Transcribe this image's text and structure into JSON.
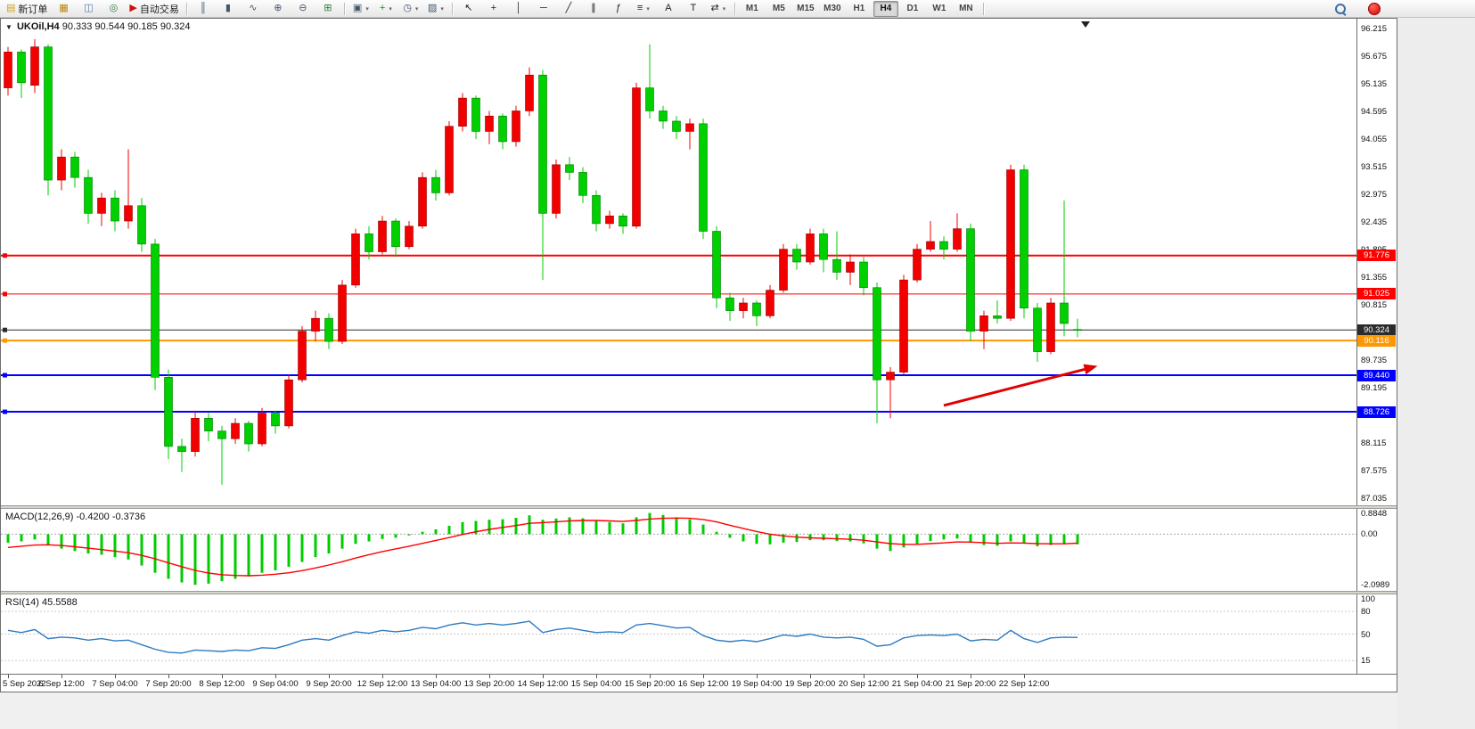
{
  "toolbar": {
    "groups": [
      {
        "name": "orders",
        "items": [
          {
            "name": "new-order-button",
            "glyph": "▤",
            "color": "#d4a017",
            "label": "新订单"
          },
          {
            "name": "market-watch-button",
            "glyph": "▦",
            "color": "#b8860b"
          },
          {
            "name": "chart-windows-button",
            "glyph": "◫",
            "color": "#5577aa"
          },
          {
            "name": "community-button",
            "glyph": "◎",
            "color": "#2e7d32"
          },
          {
            "name": "autotrading-button",
            "glyph": "▶",
            "color": "#cc1111",
            "label": "自动交易"
          }
        ]
      },
      {
        "name": "chart-type",
        "items": [
          {
            "name": "bar-chart-button",
            "glyph": "║",
            "color": "#44566b"
          },
          {
            "name": "candlestick-chart-button",
            "glyph": "▮",
            "color": "#44566b"
          },
          {
            "name": "line-chart-button",
            "glyph": "∿",
            "color": "#44566b"
          },
          {
            "name": "zoom-in-button",
            "glyph": "⊕",
            "color": "#44566b"
          },
          {
            "name": "zoom-out-button",
            "glyph": "⊖",
            "color": "#44566b"
          },
          {
            "name": "tile-windows-button",
            "glyph": "⊞",
            "color": "#2e7d32"
          }
        ]
      },
      {
        "name": "templates",
        "items": [
          {
            "name": "new-chart-button",
            "glyph": "▣",
            "color": "#44566b",
            "dropdown": true
          },
          {
            "name": "indicators-button",
            "glyph": "+",
            "color": "#1f8a1f",
            "dropdown": true
          },
          {
            "name": "periods-button",
            "glyph": "◷",
            "color": "#44566b",
            "dropdown": true
          },
          {
            "name": "template-button",
            "glyph": "▨",
            "color": "#44566b",
            "dropdown": true
          }
        ]
      },
      {
        "name": "draw",
        "items": [
          {
            "name": "cursor-button",
            "glyph": "↖",
            "color": "#222"
          },
          {
            "name": "crosshair-button",
            "glyph": "+",
            "color": "#222"
          },
          {
            "name": "vertical-line-button",
            "glyph": "│",
            "color": "#222"
          },
          {
            "name": "horizontal-line-button",
            "glyph": "─",
            "color": "#222"
          },
          {
            "name": "trendline-button",
            "glyph": "╱",
            "color": "#222"
          },
          {
            "name": "channel-button",
            "glyph": "∥",
            "color": "#222"
          },
          {
            "name": "fibonacci-button",
            "glyph": "ƒ",
            "color": "#222"
          },
          {
            "name": "shapes-button",
            "glyph": "≡",
            "color": "#222",
            "dropdown": true
          },
          {
            "name": "text-button",
            "glyph": "A",
            "color": "#222"
          },
          {
            "name": "text-label-button",
            "glyph": "T",
            "color": "#222"
          },
          {
            "name": "arrows-button",
            "glyph": "⇄",
            "color": "#222",
            "dropdown": true
          }
        ]
      }
    ],
    "timeframes": [
      "M1",
      "M5",
      "M15",
      "M30",
      "H1",
      "H4",
      "D1",
      "W1",
      "MN"
    ],
    "active_timeframe": "H4"
  },
  "chart": {
    "symbol_label": "UKOil,H4",
    "ohlc_label": "90.333 90.544 90.185 90.324",
    "expand_icon": "▼",
    "colors": {
      "up": "#f20000",
      "up_border": "#990000",
      "down": "#00cf00",
      "down_border": "#007a00",
      "background": "#ffffff"
    },
    "price_ticks": [
      "96.215",
      "95.675",
      "95.135",
      "94.595",
      "94.055",
      "93.515",
      "92.975",
      "92.435",
      "91.895",
      "91.355",
      "90.815",
      "90.275",
      "89.735",
      "89.195",
      "88.655",
      "88.115",
      "87.575",
      "87.035"
    ],
    "hlines": [
      {
        "label": "91.776",
        "color": "#ff0000",
        "width": 2,
        "role": "resistance-line"
      },
      {
        "label": "91.025",
        "color": "#ff0000",
        "width": 1,
        "role": "resistance-line"
      },
      {
        "label": "90.324",
        "color": "#2b2b2b",
        "width": 1,
        "role": "bid-price-line"
      },
      {
        "label": "90.116",
        "color": "#ff9800",
        "width": 2,
        "role": "order-line"
      },
      {
        "label": "89.440",
        "color": "#0000ff",
        "width": 2,
        "role": "support-line"
      },
      {
        "label": "88.726",
        "color": "#0000ff",
        "width": 2,
        "role": "support-line"
      }
    ],
    "arrow": {
      "from_bar": 70,
      "to_bar": 81.5,
      "price_from": 88.85,
      "price_to": 89.62,
      "color": "#e00000"
    }
  },
  "chart_data": {
    "type": "candlestick",
    "title": "UKOil,H4",
    "symbol": "UKOil",
    "period": "H4",
    "current_bar": {
      "open": 90.333,
      "high": 90.544,
      "low": 90.185,
      "close": 90.324
    },
    "price_range": [
      87.035,
      96.215
    ],
    "candles": [
      [
        95.05,
        95.85,
        94.9,
        95.75
      ],
      [
        95.75,
        95.8,
        94.85,
        95.15
      ],
      [
        95.1,
        96.0,
        94.95,
        95.85
      ],
      [
        95.85,
        95.9,
        92.95,
        93.25
      ],
      [
        93.25,
        93.85,
        93.05,
        93.7
      ],
      [
        93.7,
        93.8,
        93.1,
        93.3
      ],
      [
        93.3,
        93.45,
        92.4,
        92.6
      ],
      [
        92.6,
        93.0,
        92.35,
        92.9
      ],
      [
        92.9,
        93.05,
        92.25,
        92.45
      ],
      [
        92.45,
        93.85,
        92.3,
        92.75
      ],
      [
        92.75,
        92.9,
        91.85,
        92.0
      ],
      [
        92.0,
        92.1,
        89.15,
        89.4
      ],
      [
        89.4,
        89.55,
        87.8,
        88.05
      ],
      [
        88.05,
        88.2,
        87.55,
        87.95
      ],
      [
        87.95,
        88.75,
        87.85,
        88.6
      ],
      [
        88.6,
        88.7,
        88.15,
        88.35
      ],
      [
        88.35,
        88.45,
        87.3,
        88.2
      ],
      [
        88.2,
        88.6,
        88.1,
        88.5
      ],
      [
        88.5,
        88.55,
        87.95,
        88.1
      ],
      [
        88.1,
        88.8,
        88.05,
        88.7
      ],
      [
        88.7,
        88.75,
        88.3,
        88.45
      ],
      [
        88.45,
        89.45,
        88.4,
        89.35
      ],
      [
        89.35,
        90.4,
        89.3,
        90.3
      ],
      [
        90.3,
        90.7,
        90.1,
        90.55
      ],
      [
        90.55,
        90.65,
        89.95,
        90.1
      ],
      [
        90.1,
        91.3,
        90.05,
        91.2
      ],
      [
        91.2,
        92.3,
        91.15,
        92.2
      ],
      [
        92.2,
        92.35,
        91.7,
        91.85
      ],
      [
        91.85,
        92.55,
        91.8,
        92.45
      ],
      [
        92.45,
        92.5,
        91.75,
        91.95
      ],
      [
        91.95,
        92.45,
        91.9,
        92.35
      ],
      [
        92.35,
        93.4,
        92.3,
        93.3
      ],
      [
        93.3,
        93.45,
        92.85,
        93.0
      ],
      [
        93.0,
        94.4,
        92.95,
        94.3
      ],
      [
        94.3,
        94.95,
        94.2,
        94.85
      ],
      [
        94.85,
        94.9,
        94.05,
        94.2
      ],
      [
        94.2,
        94.6,
        93.95,
        94.5
      ],
      [
        94.5,
        94.55,
        93.85,
        94.0
      ],
      [
        94.0,
        94.7,
        93.9,
        94.6
      ],
      [
        94.6,
        95.45,
        94.5,
        95.3
      ],
      [
        95.3,
        95.4,
        91.3,
        92.6
      ],
      [
        92.6,
        93.65,
        92.5,
        93.55
      ],
      [
        93.55,
        93.7,
        93.25,
        93.4
      ],
      [
        93.4,
        93.5,
        92.8,
        92.95
      ],
      [
        92.95,
        93.05,
        92.25,
        92.4
      ],
      [
        92.4,
        92.65,
        92.3,
        92.55
      ],
      [
        92.55,
        92.6,
        92.2,
        92.35
      ],
      [
        92.35,
        95.15,
        92.3,
        95.05
      ],
      [
        95.05,
        95.9,
        94.45,
        94.6
      ],
      [
        94.6,
        94.7,
        94.25,
        94.4
      ],
      [
        94.4,
        94.5,
        94.05,
        94.2
      ],
      [
        94.2,
        94.45,
        93.85,
        94.35
      ],
      [
        94.35,
        94.45,
        92.1,
        92.25
      ],
      [
        92.25,
        92.35,
        90.75,
        90.95
      ],
      [
        90.95,
        91.05,
        90.5,
        90.7
      ],
      [
        90.7,
        90.95,
        90.55,
        90.85
      ],
      [
        90.85,
        90.9,
        90.4,
        90.6
      ],
      [
        90.6,
        91.2,
        90.55,
        91.1
      ],
      [
        91.1,
        92.0,
        91.05,
        91.9
      ],
      [
        91.9,
        92.0,
        91.5,
        91.65
      ],
      [
        91.65,
        92.3,
        91.6,
        92.2
      ],
      [
        92.2,
        92.3,
        91.45,
        91.7
      ],
      [
        91.7,
        92.25,
        91.3,
        91.45
      ],
      [
        91.45,
        91.8,
        91.2,
        91.65
      ],
      [
        91.65,
        91.75,
        91.0,
        91.15
      ],
      [
        91.15,
        91.25,
        88.5,
        89.35
      ],
      [
        89.35,
        89.6,
        88.6,
        89.5
      ],
      [
        89.5,
        91.4,
        89.45,
        91.3
      ],
      [
        91.3,
        92.0,
        91.25,
        91.9
      ],
      [
        91.9,
        92.45,
        91.85,
        92.05
      ],
      [
        92.05,
        92.15,
        91.7,
        91.9
      ],
      [
        91.9,
        92.6,
        91.85,
        92.3
      ],
      [
        92.3,
        92.4,
        90.1,
        90.3
      ],
      [
        90.3,
        90.7,
        89.95,
        90.6
      ],
      [
        90.6,
        90.9,
        90.45,
        90.55
      ],
      [
        90.55,
        93.55,
        90.5,
        93.45
      ],
      [
        93.45,
        93.55,
        90.55,
        90.75
      ],
      [
        90.75,
        90.85,
        89.7,
        89.9
      ],
      [
        89.9,
        90.95,
        89.85,
        90.85
      ],
      [
        90.85,
        92.85,
        90.2,
        90.45
      ],
      [
        90.333,
        90.544,
        90.185,
        90.324
      ]
    ],
    "x_labels": [
      "5 Sep 2022",
      "6 Sep 12:00",
      "7 Sep 04:00",
      "7 Sep 20:00",
      "8 Sep 12:00",
      "9 Sep 04:00",
      "9 Sep 20:00",
      "12 Sep 12:00",
      "13 Sep 04:00",
      "13 Sep 20:00",
      "14 Sep 12:00",
      "15 Sep 04:00",
      "15 Sep 20:00",
      "16 Sep 12:00",
      "19 Sep 04:00",
      "19 Sep 20:00",
      "20 Sep 12:00",
      "21 Sep 04:00",
      "21 Sep 20:00",
      "22 Sep 12:00"
    ],
    "x_label_every": 4,
    "macd": {
      "title": "MACD(12,26,9)",
      "values_text": "-0.4200 -0.3736",
      "main_value": -0.42,
      "signal_value": -0.3736,
      "histogram_color": "#00cc00",
      "signal_color": "#ff0000",
      "y_ticks": [
        {
          "label": "0.8848",
          "value": 0.8848
        },
        {
          "label": "0.00",
          "value": 0
        },
        {
          "label": "-2.0989",
          "value": -2.0989
        }
      ],
      "histogram": [
        -0.35,
        -0.3,
        -0.22,
        -0.45,
        -0.6,
        -0.7,
        -0.8,
        -0.85,
        -0.95,
        -1.05,
        -1.3,
        -1.6,
        -1.85,
        -2.0,
        -2.1,
        -2.05,
        -1.95,
        -1.85,
        -1.75,
        -1.6,
        -1.5,
        -1.35,
        -1.15,
        -0.95,
        -0.8,
        -0.6,
        -0.4,
        -0.3,
        -0.2,
        -0.15,
        -0.05,
        0.1,
        0.2,
        0.35,
        0.5,
        0.55,
        0.6,
        0.62,
        0.68,
        0.78,
        0.6,
        0.65,
        0.7,
        0.66,
        0.55,
        0.5,
        0.45,
        0.7,
        0.88,
        0.8,
        0.7,
        0.62,
        0.4,
        0.1,
        -0.15,
        -0.3,
        -0.4,
        -0.42,
        -0.35,
        -0.32,
        -0.25,
        -0.25,
        -0.28,
        -0.3,
        -0.38,
        -0.6,
        -0.7,
        -0.55,
        -0.4,
        -0.28,
        -0.22,
        -0.18,
        -0.35,
        -0.45,
        -0.48,
        -0.3,
        -0.38,
        -0.5,
        -0.45,
        -0.42,
        -0.42
      ],
      "signal": [
        -0.55,
        -0.5,
        -0.45,
        -0.44,
        -0.47,
        -0.52,
        -0.58,
        -0.64,
        -0.7,
        -0.77,
        -0.88,
        -1.02,
        -1.19,
        -1.35,
        -1.5,
        -1.61,
        -1.68,
        -1.71,
        -1.72,
        -1.7,
        -1.66,
        -1.6,
        -1.51,
        -1.4,
        -1.28,
        -1.14,
        -0.99,
        -0.85,
        -0.72,
        -0.61,
        -0.5,
        -0.38,
        -0.26,
        -0.14,
        -0.01,
        0.1,
        0.2,
        0.28,
        0.36,
        0.45,
        0.48,
        0.51,
        0.55,
        0.57,
        0.57,
        0.55,
        0.53,
        0.57,
        0.63,
        0.66,
        0.67,
        0.66,
        0.61,
        0.51,
        0.37,
        0.24,
        0.11,
        0.0,
        -0.07,
        -0.12,
        -0.15,
        -0.17,
        -0.19,
        -0.21,
        -0.25,
        -0.32,
        -0.39,
        -0.42,
        -0.42,
        -0.39,
        -0.36,
        -0.32,
        -0.33,
        -0.35,
        -0.38,
        -0.36,
        -0.37,
        -0.39,
        -0.4,
        -0.4,
        -0.3736
      ]
    },
    "rsi": {
      "title": "RSI(14)",
      "value_text": "45.5588",
      "value": 45.5588,
      "line_color": "#2e7ac0",
      "y_ticks": [
        {
          "label": "100",
          "value": 100
        },
        {
          "label": "80",
          "value": 80
        },
        {
          "label": "50",
          "value": 50
        },
        {
          "label": "15",
          "value": 15
        }
      ],
      "values": [
        55,
        52,
        56,
        44,
        46,
        45,
        42,
        44,
        41,
        42,
        36,
        30,
        26,
        25,
        29,
        28,
        27,
        29,
        28,
        32,
        31,
        36,
        42,
        44,
        42,
        48,
        53,
        51,
        55,
        53,
        55,
        59,
        57,
        62,
        65,
        62,
        64,
        62,
        64,
        67,
        52,
        56,
        58,
        55,
        52,
        53,
        52,
        62,
        64,
        61,
        58,
        59,
        48,
        42,
        40,
        42,
        40,
        44,
        49,
        47,
        50,
        46,
        45,
        46,
        43,
        34,
        36,
        45,
        48,
        49,
        48,
        50,
        41,
        43,
        42,
        55,
        44,
        39,
        45,
        46,
        45.56
      ]
    }
  }
}
